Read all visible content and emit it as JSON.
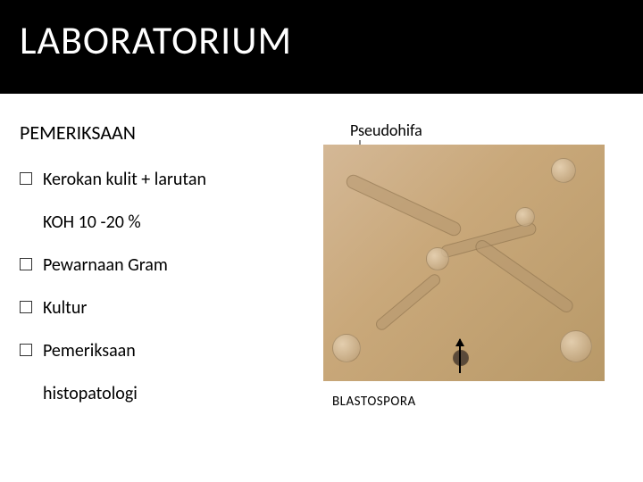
{
  "title": "LABORATORIUM",
  "subtitle": "PEMERIKSAAN",
  "items": [
    {
      "label": "Kerokan kulit + larutan",
      "cont": "KOH 10 -20 %"
    },
    {
      "label": "Pewarnaan Gram"
    },
    {
      "label": "Kultur"
    },
    {
      "label": "Pemeriksaan",
      "cont": "histopatologi"
    }
  ],
  "figure": {
    "label_top": "Pseudohifa",
    "label_bottom": "BLASTOSPORA",
    "bg_colors": [
      "#d4b896",
      "#c9a87a",
      "#b89968"
    ],
    "arrow_top_color": "#8a8a8a",
    "arrow_bottom_color": "#000000"
  },
  "colors": {
    "title_bg": "#000000",
    "title_fg": "#ffffff",
    "body_bg": "#ffffff",
    "text": "#000000"
  }
}
